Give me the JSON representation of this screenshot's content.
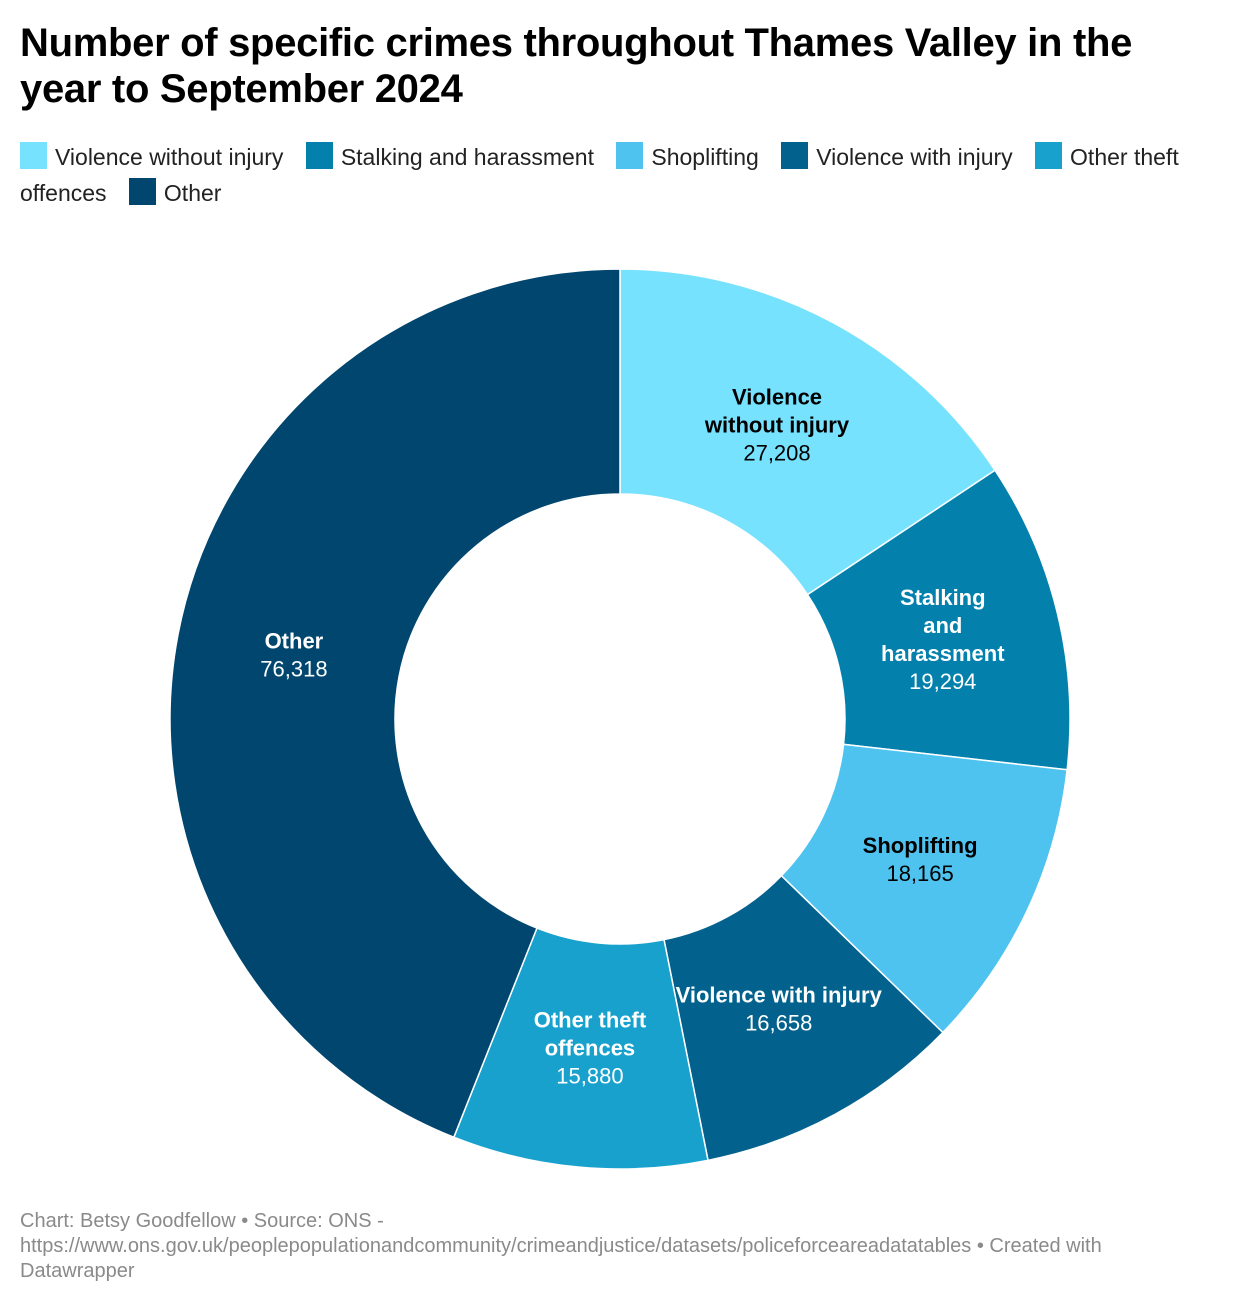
{
  "footer": {
    "line": "Chart: Betsy Goodfellow • Source: ONS - https://www.ons.gov.uk/peoplepopulationandcommunity/crimeandjustice/datasets/policeforceareadatatables • Created with Datawrapper"
  },
  "chart_data": {
    "type": "pie",
    "variant": "donut",
    "title": "Number of specific crimes throughout Thames Valley in the year to September 2024",
    "legend_position": "top",
    "categories": [
      "Violence without injury",
      "Stalking and harassment",
      "Shoplifting",
      "Violence with injury",
      "Other theft offences",
      "Other"
    ],
    "values": [
      27208,
      19294,
      18165,
      16658,
      15880,
      76318
    ],
    "value_labels": [
      "27,208",
      "19,294",
      "18,165",
      "16,658",
      "15,880",
      "76,318"
    ],
    "colors": [
      "#76e2fe",
      "#0381ac",
      "#4ec3ef",
      "#02628d",
      "#19a1cd",
      "#00466e"
    ],
    "label_colors": [
      "#000000",
      "#ffffff",
      "#000000",
      "#ffffff",
      "#ffffff",
      "#ffffff"
    ],
    "label_lines": [
      [
        "Violence",
        "without injury"
      ],
      [
        "Stalking",
        "and",
        "harassment"
      ],
      [
        "Shoplifting"
      ],
      [
        "Violence with injury"
      ],
      [
        "Other theft",
        "offences"
      ],
      [
        "Other"
      ]
    ]
  }
}
